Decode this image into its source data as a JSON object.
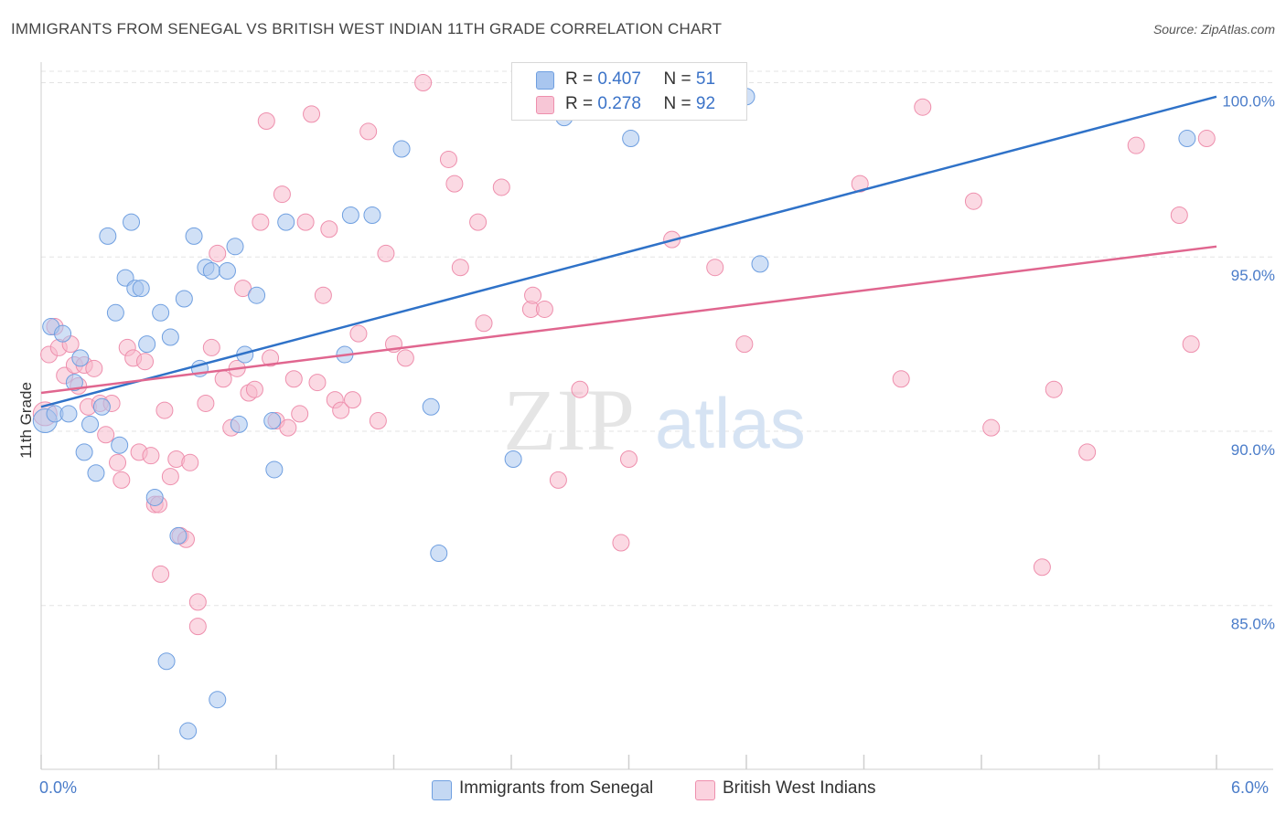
{
  "title": "IMMIGRANTS FROM SENEGAL VS BRITISH WEST INDIAN 11TH GRADE CORRELATION CHART",
  "source": "Source: ZipAtlas.com",
  "watermark": {
    "zip": "ZIP",
    "atlas": "atlas"
  },
  "legend": {
    "rows": [
      {
        "r_label": "R =",
        "r_value": "0.407",
        "n_label": "N =",
        "n_value": "51"
      },
      {
        "r_label": "R =",
        "r_value": "0.278",
        "n_label": "N =",
        "n_value": "92"
      }
    ]
  },
  "bottom_legend": {
    "series1": "Immigrants from Senegal",
    "series2": "British West Indians"
  },
  "x_axis": {
    "min_label": "0.0%",
    "max_label": "6.0%"
  },
  "y_axis": {
    "title": "11th Grade",
    "ticks": [
      "100.0%",
      "95.0%",
      "90.0%",
      "85.0%"
    ]
  },
  "colors": {
    "blue_fill": "#a9c6ef",
    "blue_stroke": "#6f9fe0",
    "blue_line": "#2f72c8",
    "pink_fill": "#f7b9cc",
    "pink_stroke": "#ee8fad",
    "pink_line": "#e0668f",
    "grid": "#e3e3e3",
    "tick_text": "#4a7cc9"
  },
  "chart_data": {
    "type": "scatter",
    "xlabel": "",
    "ylabel": "11th Grade",
    "xlim": [
      0,
      6
    ],
    "ylim": [
      80.3,
      100.8
    ],
    "y_ticks": [
      85,
      90,
      95,
      100
    ],
    "grid": true,
    "legend_position": "top-center",
    "series": [
      {
        "name": "Immigrants from Senegal",
        "r": 0.407,
        "n": 51,
        "trend": {
          "x": [
            0,
            6
          ],
          "y": [
            90.7,
            99.6
          ]
        },
        "points": [
          [
            0.02,
            90.3
          ],
          [
            0.05,
            93.0
          ],
          [
            0.07,
            90.5
          ],
          [
            0.11,
            92.8
          ],
          [
            0.14,
            90.5
          ],
          [
            0.17,
            91.4
          ],
          [
            0.2,
            92.1
          ],
          [
            0.22,
            89.4
          ],
          [
            0.25,
            90.2
          ],
          [
            0.28,
            88.8
          ],
          [
            0.31,
            90.7
          ],
          [
            0.34,
            95.6
          ],
          [
            0.38,
            93.4
          ],
          [
            0.4,
            89.6
          ],
          [
            0.43,
            94.4
          ],
          [
            0.46,
            96.0
          ],
          [
            0.48,
            94.1
          ],
          [
            0.51,
            94.1
          ],
          [
            0.54,
            92.5
          ],
          [
            0.58,
            88.1
          ],
          [
            0.61,
            93.4
          ],
          [
            0.64,
            83.4
          ],
          [
            0.66,
            92.7
          ],
          [
            0.7,
            87.0
          ],
          [
            0.73,
            93.8
          ],
          [
            0.75,
            81.4
          ],
          [
            0.78,
            95.6
          ],
          [
            0.81,
            91.8
          ],
          [
            0.84,
            94.7
          ],
          [
            0.87,
            94.6
          ],
          [
            0.9,
            82.3
          ],
          [
            0.95,
            94.6
          ],
          [
            0.99,
            95.3
          ],
          [
            1.01,
            90.2
          ],
          [
            1.04,
            92.2
          ],
          [
            1.1,
            93.9
          ],
          [
            1.18,
            90.3
          ],
          [
            1.19,
            88.9
          ],
          [
            1.25,
            96.0
          ],
          [
            1.55,
            92.2
          ],
          [
            1.58,
            96.2
          ],
          [
            1.69,
            96.2
          ],
          [
            1.84,
            98.1
          ],
          [
            1.99,
            90.7
          ],
          [
            2.03,
            86.5
          ],
          [
            2.41,
            89.2
          ],
          [
            2.67,
            99.0
          ],
          [
            3.01,
            98.4
          ],
          [
            3.6,
            99.6
          ],
          [
            3.67,
            94.8
          ],
          [
            5.85,
            98.4
          ]
        ]
      },
      {
        "name": "British West Indians",
        "r": 0.278,
        "n": 92,
        "trend": {
          "x": [
            0,
            6
          ],
          "y": [
            91.1,
            95.3
          ]
        },
        "points": [
          [
            0.02,
            90.5
          ],
          [
            0.04,
            92.2
          ],
          [
            0.07,
            93.0
          ],
          [
            0.09,
            92.4
          ],
          [
            0.12,
            91.6
          ],
          [
            0.15,
            92.5
          ],
          [
            0.17,
            91.9
          ],
          [
            0.19,
            91.3
          ],
          [
            0.22,
            91.9
          ],
          [
            0.24,
            90.7
          ],
          [
            0.27,
            91.8
          ],
          [
            0.3,
            90.8
          ],
          [
            0.33,
            89.9
          ],
          [
            0.36,
            90.8
          ],
          [
            0.39,
            89.1
          ],
          [
            0.41,
            88.6
          ],
          [
            0.44,
            92.4
          ],
          [
            0.47,
            92.1
          ],
          [
            0.5,
            89.4
          ],
          [
            0.53,
            92.0
          ],
          [
            0.56,
            89.3
          ],
          [
            0.58,
            87.9
          ],
          [
            0.61,
            85.9
          ],
          [
            0.63,
            90.6
          ],
          [
            0.66,
            88.7
          ],
          [
            0.69,
            89.2
          ],
          [
            0.71,
            87.0
          ],
          [
            0.74,
            86.9
          ],
          [
            0.76,
            89.1
          ],
          [
            0.8,
            85.1
          ],
          [
            0.84,
            90.8
          ],
          [
            0.87,
            92.4
          ],
          [
            0.9,
            95.1
          ],
          [
            0.93,
            91.5
          ],
          [
            0.97,
            90.1
          ],
          [
            1.0,
            91.8
          ],
          [
            1.03,
            94.1
          ],
          [
            1.06,
            91.1
          ],
          [
            1.09,
            91.2
          ],
          [
            1.12,
            96.0
          ],
          [
            1.15,
            98.9
          ],
          [
            1.17,
            92.1
          ],
          [
            1.2,
            90.3
          ],
          [
            1.23,
            96.8
          ],
          [
            1.26,
            90.1
          ],
          [
            1.29,
            91.5
          ],
          [
            1.32,
            90.5
          ],
          [
            1.35,
            96.0
          ],
          [
            1.38,
            99.1
          ],
          [
            1.41,
            91.4
          ],
          [
            1.44,
            93.9
          ],
          [
            1.47,
            95.8
          ],
          [
            1.5,
            90.9
          ],
          [
            1.53,
            90.6
          ],
          [
            1.59,
            90.9
          ],
          [
            1.62,
            92.8
          ],
          [
            1.67,
            98.6
          ],
          [
            1.72,
            90.3
          ],
          [
            1.76,
            95.1
          ],
          [
            1.8,
            92.5
          ],
          [
            1.86,
            92.1
          ],
          [
            1.95,
            100.0
          ],
          [
            2.08,
            97.8
          ],
          [
            2.11,
            97.1
          ],
          [
            2.14,
            94.7
          ],
          [
            2.23,
            96.0
          ],
          [
            2.26,
            93.1
          ],
          [
            2.35,
            97.0
          ],
          [
            2.5,
            93.5
          ],
          [
            2.51,
            93.9
          ],
          [
            2.57,
            93.5
          ],
          [
            2.64,
            88.6
          ],
          [
            2.75,
            91.2
          ],
          [
            2.96,
            86.8
          ],
          [
            3.0,
            89.2
          ],
          [
            3.22,
            95.5
          ],
          [
            3.44,
            94.7
          ],
          [
            3.59,
            92.5
          ],
          [
            4.18,
            97.1
          ],
          [
            4.39,
            91.5
          ],
          [
            4.5,
            99.3
          ],
          [
            4.76,
            96.6
          ],
          [
            4.85,
            90.1
          ],
          [
            5.11,
            86.1
          ],
          [
            5.17,
            91.2
          ],
          [
            5.34,
            89.4
          ],
          [
            5.59,
            98.2
          ],
          [
            5.81,
            96.2
          ],
          [
            5.87,
            92.5
          ],
          [
            5.95,
            98.4
          ],
          [
            0.6,
            87.9
          ],
          [
            0.8,
            84.4
          ]
        ]
      }
    ]
  }
}
